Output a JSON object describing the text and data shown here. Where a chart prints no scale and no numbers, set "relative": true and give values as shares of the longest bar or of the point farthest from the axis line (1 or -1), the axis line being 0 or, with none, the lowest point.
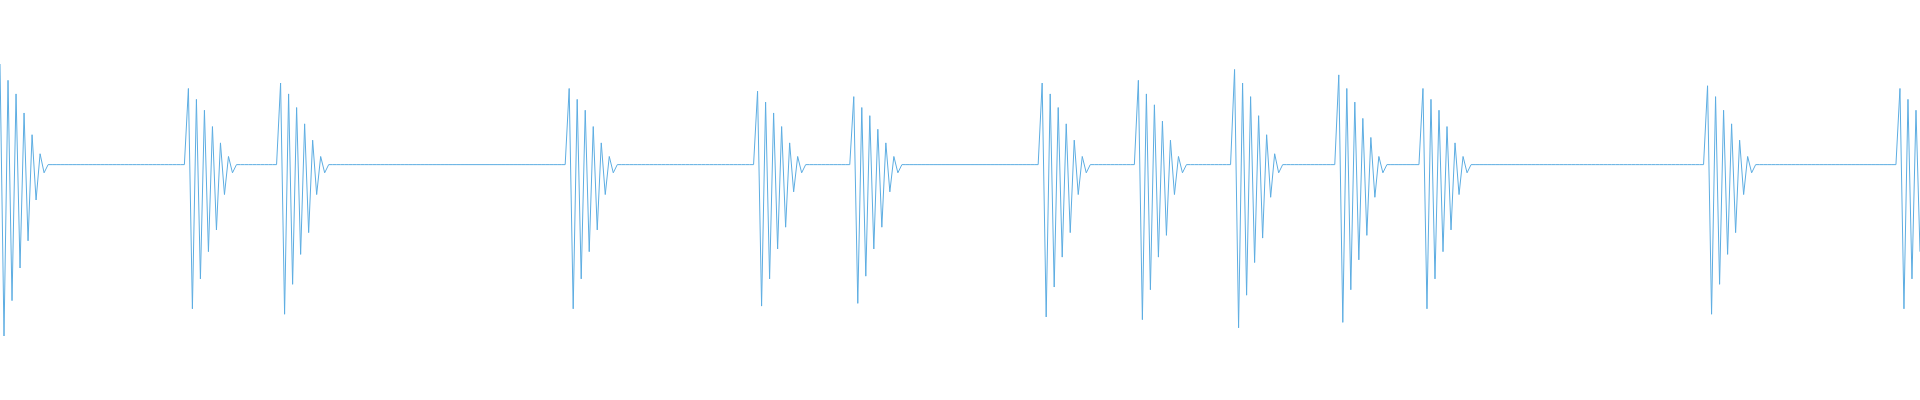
{
  "chart_data": {
    "type": "line",
    "relative": true,
    "marker": "none",
    "color": "#5dade2",
    "categories": [
      null,
      null,
      null,
      null,
      null,
      null,
      null,
      null,
      null,
      null,
      null,
      null,
      null,
      null,
      null,
      null,
      null,
      null,
      null,
      null,
      null,
      null,
      null,
      null,
      null,
      null,
      null,
      null,
      null,
      null,
      null,
      null,
      null,
      null,
      null,
      null,
      null,
      null,
      null,
      null,
      null,
      null,
      null,
      null,
      null,
      null,
      null,
      null,
      null,
      null,
      null,
      null,
      null,
      null,
      null,
      null,
      null,
      null,
      null,
      null,
      null,
      null,
      null,
      null,
      null,
      null,
      null,
      null,
      null,
      null,
      null,
      null,
      null,
      null,
      null,
      null,
      null,
      null,
      null,
      null,
      null,
      null,
      null,
      null,
      null,
      null,
      null,
      null,
      null,
      null,
      null,
      null,
      null,
      null,
      null,
      null,
      null,
      null,
      null,
      null,
      null,
      null,
      null,
      null,
      null,
      null,
      null,
      null,
      null,
      null,
      null,
      null,
      null,
      null,
      null,
      null,
      null,
      null,
      null,
      null,
      null,
      null,
      null,
      null,
      null,
      null,
      null,
      null,
      null,
      null,
      null,
      null,
      null,
      null,
      null,
      null,
      null,
      null,
      null,
      null,
      null,
      null,
      null,
      null,
      null,
      null,
      null,
      null,
      null,
      null,
      null,
      null,
      null,
      null,
      null,
      null,
      null,
      null,
      null,
      null,
      null,
      null,
      null,
      null,
      null,
      null,
      null,
      null,
      null,
      null,
      null,
      null,
      null,
      null,
      null,
      null,
      null,
      null,
      null,
      null,
      null,
      null,
      null,
      null,
      null,
      null,
      null,
      null,
      null,
      null,
      null,
      null,
      null,
      null,
      null,
      null,
      null,
      null,
      null,
      null,
      null,
      null,
      null,
      null,
      null,
      null,
      null,
      null,
      null,
      null,
      null,
      null,
      null,
      null,
      null,
      null,
      null,
      null,
      null,
      null,
      null,
      null,
      null,
      null,
      null,
      null,
      null,
      null,
      null,
      null,
      null,
      null,
      null,
      null,
      null,
      null,
      null,
      null,
      null,
      null,
      null,
      null,
      null,
      null,
      null,
      null,
      null,
      null,
      null,
      null,
      null,
      null,
      null,
      null,
      null,
      null,
      null,
      null,
      null,
      null,
      null,
      null,
      null,
      null,
      null,
      null,
      null,
      null,
      null,
      null,
      null,
      null,
      null,
      null,
      null,
      null,
      null,
      null,
      null,
      null,
      null,
      null,
      null,
      null,
      null,
      null,
      null,
      null,
      null,
      null,
      null,
      null,
      null,
      null,
      null,
      null,
      null,
      null,
      null,
      null,
      null,
      null,
      null,
      null,
      null,
      null,
      null,
      null,
      null,
      null,
      null,
      null,
      null,
      null,
      null,
      null,
      null,
      null,
      null,
      null,
      null,
      null,
      null,
      null,
      null,
      null,
      null,
      null,
      null,
      null,
      null,
      null,
      null,
      null,
      null,
      null,
      null,
      null,
      null,
      null,
      null,
      null,
      null,
      null,
      null,
      null,
      null,
      null,
      null,
      null,
      null,
      null,
      null,
      null,
      null,
      null,
      null,
      null,
      null,
      null,
      null,
      null,
      null,
      null,
      null,
      null,
      null,
      null,
      null,
      null,
      null,
      null,
      null,
      null,
      null,
      null,
      null,
      null,
      null,
      null,
      null,
      null,
      null,
      null,
      null,
      null,
      null,
      null,
      null,
      null,
      null,
      null,
      null,
      null,
      null,
      null,
      null,
      null,
      null,
      null,
      null,
      null,
      null,
      null,
      null,
      null,
      null,
      null,
      null,
      null,
      null,
      null,
      null,
      null,
      null,
      null,
      null,
      null,
      null,
      null,
      null,
      null,
      null,
      null,
      null,
      null,
      null,
      null,
      null,
      null,
      null,
      null,
      null,
      null,
      null,
      null,
      null,
      null,
      null,
      null,
      null,
      null,
      null,
      null,
      null,
      null,
      null,
      null,
      null,
      null,
      null,
      null,
      null,
      null,
      null,
      null,
      null,
      null,
      null,
      null,
      null,
      null,
      null,
      null,
      null,
      null,
      null,
      null,
      null,
      null,
      null,
      null,
      null,
      null,
      null,
      null,
      null,
      null,
      null,
      null
    ],
    "values": [
      1.0,
      0.0,
      0.94,
      0.13,
      0.89,
      0.25,
      0.82,
      0.35,
      0.74,
      0.5,
      0.67,
      0.6,
      0.63,
      0.63,
      0.63,
      0.63,
      0.63,
      0.63,
      0.63,
      0.63,
      0.63,
      0.63,
      0.63,
      0.63,
      0.63,
      0.63,
      0.63,
      0.63,
      0.63,
      0.63,
      0.63,
      0.63,
      0.63,
      0.63,
      0.63,
      0.63,
      0.63,
      0.63,
      0.63,
      0.63,
      0.63,
      0.63,
      0.63,
      0.63,
      0.63,
      0.63,
      0.63,
      0.91,
      0.1,
      0.87,
      0.21,
      0.83,
      0.31,
      0.77,
      0.39,
      0.71,
      0.52,
      0.66,
      0.6,
      0.63,
      0.63,
      0.63,
      0.63,
      0.63,
      0.63,
      0.63,
      0.63,
      0.63,
      0.63,
      0.63,
      0.93,
      0.08,
      0.89,
      0.19,
      0.84,
      0.3,
      0.78,
      0.38,
      0.72,
      0.52,
      0.66,
      0.6,
      0.63,
      0.63,
      0.63,
      0.63,
      0.63,
      0.63,
      0.63,
      0.63,
      0.63,
      0.63,
      0.63,
      0.63,
      0.63,
      0.63,
      0.63,
      0.63,
      0.63,
      0.63,
      0.63,
      0.63,
      0.63,
      0.63,
      0.63,
      0.63,
      0.63,
      0.63,
      0.63,
      0.63,
      0.63,
      0.63,
      0.63,
      0.63,
      0.63,
      0.63,
      0.63,
      0.63,
      0.63,
      0.63,
      0.63,
      0.63,
      0.63,
      0.63,
      0.63,
      0.63,
      0.63,
      0.63,
      0.63,
      0.63,
      0.63,
      0.63,
      0.63,
      0.63,
      0.63,
      0.63,
      0.63,
      0.63,
      0.63,
      0.63,
      0.63,
      0.63,
      0.91,
      0.1,
      0.87,
      0.21,
      0.83,
      0.31,
      0.77,
      0.39,
      0.71,
      0.52,
      0.66,
      0.6,
      0.63,
      0.63,
      0.63,
      0.63,
      0.63,
      0.63,
      0.63,
      0.63,
      0.63,
      0.63,
      0.63,
      0.63,
      0.63,
      0.63,
      0.63,
      0.63,
      0.63,
      0.63,
      0.63,
      0.63,
      0.63,
      0.63,
      0.63,
      0.63,
      0.63,
      0.63,
      0.63,
      0.63,
      0.63,
      0.63,
      0.63,
      0.63,
      0.63,
      0.63,
      0.63,
      0.9,
      0.11,
      0.86,
      0.21,
      0.82,
      0.32,
      0.77,
      0.4,
      0.71,
      0.53,
      0.66,
      0.6,
      0.63,
      0.63,
      0.63,
      0.63,
      0.63,
      0.63,
      0.63,
      0.63,
      0.63,
      0.63,
      0.63,
      0.63,
      0.88,
      0.12,
      0.84,
      0.22,
      0.81,
      0.32,
      0.76,
      0.4,
      0.71,
      0.53,
      0.66,
      0.6,
      0.63,
      0.63,
      0.63,
      0.63,
      0.63,
      0.63,
      0.63,
      0.63,
      0.63,
      0.63,
      0.63,
      0.63,
      0.63,
      0.63,
      0.63,
      0.63,
      0.63,
      0.63,
      0.63,
      0.63,
      0.63,
      0.63,
      0.63,
      0.63,
      0.63,
      0.63,
      0.63,
      0.63,
      0.63,
      0.63,
      0.63,
      0.63,
      0.63,
      0.63,
      0.63,
      0.93,
      0.07,
      0.89,
      0.18,
      0.84,
      0.29,
      0.78,
      0.38,
      0.72,
      0.52,
      0.66,
      0.6,
      0.63,
      0.63,
      0.63,
      0.63,
      0.63,
      0.63,
      0.63,
      0.63,
      0.63,
      0.63,
      0.63,
      0.63,
      0.94,
      0.06,
      0.89,
      0.17,
      0.85,
      0.29,
      0.79,
      0.37,
      0.72,
      0.52,
      0.66,
      0.6,
      0.63,
      0.63,
      0.63,
      0.63,
      0.63,
      0.63,
      0.63,
      0.63,
      0.63,
      0.63,
      0.63,
      0.63,
      0.98,
      0.03,
      0.93,
      0.15,
      0.88,
      0.27,
      0.81,
      0.36,
      0.74,
      0.51,
      0.67,
      0.6,
      0.63,
      0.63,
      0.63,
      0.63,
      0.63,
      0.63,
      0.63,
      0.63,
      0.63,
      0.63,
      0.63,
      0.63,
      0.63,
      0.63,
      0.96,
      0.05,
      0.91,
      0.17,
      0.86,
      0.28,
      0.8,
      0.37,
      0.73,
      0.51,
      0.66,
      0.6,
      0.63,
      0.63,
      0.63,
      0.63,
      0.63,
      0.63,
      0.63,
      0.63,
      0.63,
      0.91,
      0.1,
      0.87,
      0.21,
      0.83,
      0.31,
      0.77,
      0.39,
      0.71,
      0.52,
      0.66,
      0.6,
      0.63,
      0.63,
      0.63,
      0.63,
      0.63,
      0.63,
      0.63,
      0.63,
      0.63,
      0.63,
      0.63,
      0.63,
      0.63,
      0.63,
      0.63,
      0.63,
      0.63,
      0.63,
      0.63,
      0.63,
      0.63,
      0.63,
      0.63,
      0.63,
      0.63,
      0.63,
      0.63,
      0.63,
      0.63,
      0.63,
      0.63,
      0.63,
      0.63,
      0.63,
      0.63,
      0.63,
      0.63,
      0.63,
      0.63,
      0.63,
      0.63,
      0.63,
      0.63,
      0.63,
      0.63,
      0.63,
      0.63,
      0.63,
      0.63,
      0.63,
      0.63,
      0.63,
      0.63,
      0.63,
      0.63,
      0.63,
      0.63,
      0.63,
      0.63,
      0.92,
      0.08,
      0.88,
      0.19,
      0.83,
      0.3,
      0.78,
      0.38,
      0.72,
      0.52,
      0.66,
      0.6,
      0.63,
      0.63,
      0.63,
      0.63,
      0.63,
      0.63,
      0.63,
      0.63,
      0.63,
      0.63,
      0.63,
      0.63,
      0.63,
      0.63,
      0.63,
      0.63,
      0.63,
      0.63,
      0.63,
      0.63,
      0.63,
      0.63,
      0.63,
      0.63,
      0.63,
      0.63,
      0.63,
      0.63,
      0.63,
      0.63,
      0.63,
      0.63,
      0.63,
      0.63,
      0.63,
      0.63,
      0.91,
      0.1,
      0.87,
      0.21,
      0.83,
      0.31
    ]
  }
}
